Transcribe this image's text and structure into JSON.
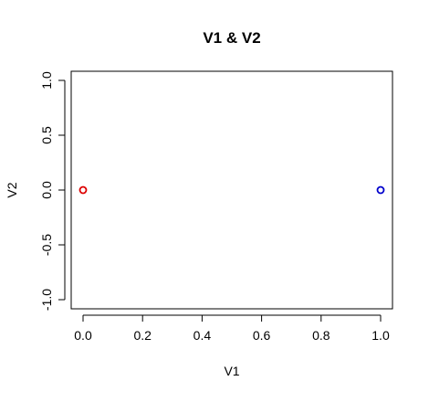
{
  "chart_data": {
    "type": "scatter",
    "title": "V1 & V2",
    "xlabel": "V1",
    "ylabel": "V2",
    "xlim": [
      0,
      1
    ],
    "ylim": [
      -1,
      1
    ],
    "x_ticks": [
      0.0,
      0.2,
      0.4,
      0.6,
      0.8,
      1.0
    ],
    "x_tick_labels": [
      "0.0",
      "0.2",
      "0.4",
      "0.6",
      "0.8",
      "1.0"
    ],
    "y_ticks": [
      -1.0,
      -0.5,
      0.0,
      0.5,
      1.0
    ],
    "y_tick_labels": [
      "-1.0",
      "-0.5",
      "0.0",
      "0.5",
      "1.0"
    ],
    "grid": false,
    "marker": "open-circle",
    "points": [
      {
        "x": 0,
        "y": 0,
        "color": "#dd0000"
      },
      {
        "x": 1,
        "y": 0,
        "color": "#0000cc"
      }
    ]
  }
}
